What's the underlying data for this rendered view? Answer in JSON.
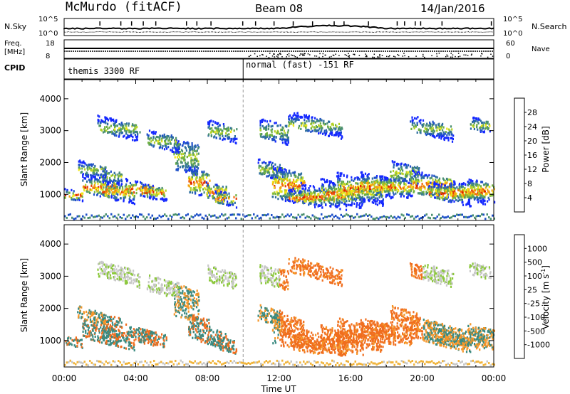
{
  "header": {
    "station": "McMurdo (fitACF)",
    "beam": "Beam 08",
    "date": "14/Jan/2016"
  },
  "top_panel": {
    "nsky_label": "N.Sky",
    "nsky_ticks": [
      "10^5",
      "10^0"
    ],
    "nsearch_label": "N.Search",
    "nsearch_ticks": [
      "10^5",
      "10^0"
    ],
    "freq_label": "Freq.",
    "freq_unit": "[MHz]",
    "freq_ticks": [
      "18",
      "8"
    ],
    "nave_label": "Nave",
    "nave_ticks": [
      "60",
      "0"
    ],
    "cpid_label": "CPID",
    "cpid_segments": [
      {
        "label": "themis 3300 RF",
        "start_hour": 0
      },
      {
        "label": "normal (fast) -151 RF",
        "start_hour": 10
      }
    ]
  },
  "chart_data": [
    {
      "type": "heatmap",
      "name": "power",
      "ylabel": "Slant Range [km]",
      "xlabel": "Time UT",
      "xlim": [
        0,
        24
      ],
      "ylim": [
        180,
        4600
      ],
      "yticks": [
        "1000",
        "2000",
        "3000",
        "4000"
      ],
      "xticks": [
        "00:00",
        "04:00",
        "08:00",
        "12:00",
        "16:00",
        "20:00",
        "00:00"
      ],
      "colorbar": {
        "label": "Power [dB]",
        "ticks": [
          "4",
          "8",
          "12",
          "16",
          "20",
          "24",
          "28"
        ],
        "colors": [
          "#1428ff",
          "#1e50c8",
          "#2e6ea0",
          "#4b9070",
          "#6eb040",
          "#b4d228",
          "#f0e614",
          "#f5a50f",
          "#f06e0a",
          "#e63c05",
          "#dc1e00"
        ]
      }
    },
    {
      "type": "heatmap",
      "name": "velocity",
      "ylabel": "Slant Range [km]",
      "xlabel": "Time UT",
      "xlim": [
        0,
        24
      ],
      "ylim": [
        180,
        4600
      ],
      "yticks": [
        "1000",
        "2000",
        "3000",
        "4000"
      ],
      "xticks": [
        "00:00",
        "04:00",
        "08:00",
        "12:00",
        "16:00",
        "20:00",
        "00:00"
      ],
      "colorbar": {
        "label": "Velocity [m s",
        "label_sup": "-1",
        "label_end": "]",
        "ticks": [
          "1000",
          "500",
          "100",
          "25",
          "-25",
          "-100",
          "-500",
          "-1000"
        ],
        "colors": [
          "#2850c8",
          "#2e6eb4",
          "#3a8a80",
          "#5aaa3c",
          "#8cc83c",
          "#c8c8c8",
          "#f0b43c",
          "#f59628",
          "#f06e1e",
          "#e6461e",
          "#dc1e14"
        ]
      }
    }
  ],
  "x_axis_title": "Time UT"
}
